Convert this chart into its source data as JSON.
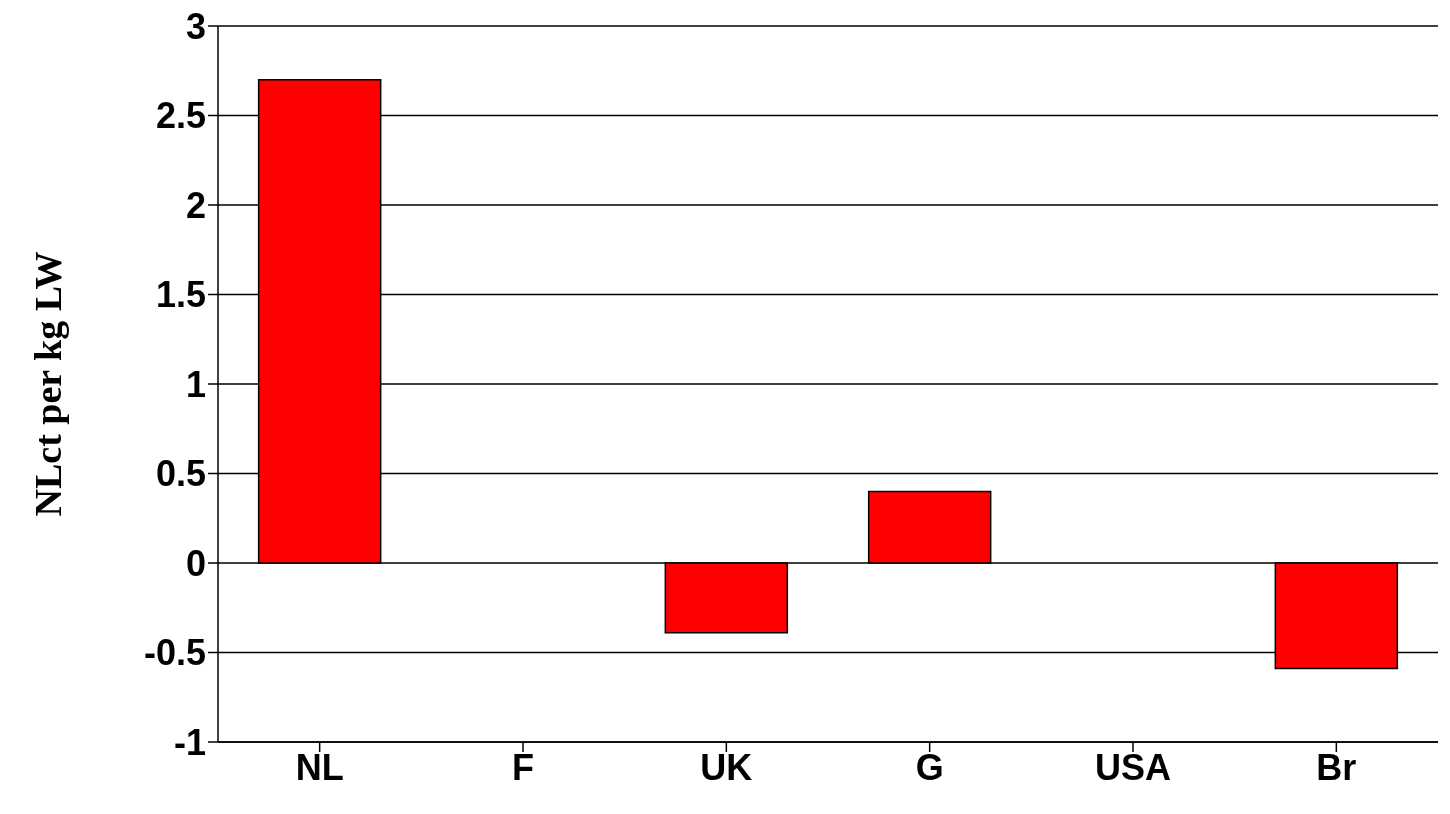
{
  "chart_data": {
    "type": "bar",
    "ylabel": "NLct per kg LW",
    "categories": [
      "NL",
      "F",
      "UK",
      "G",
      "USA",
      "Br"
    ],
    "series": [
      {
        "color": "#ff0000",
        "values": [
          2.7,
          0,
          -0.39,
          0.4,
          0,
          -0.59
        ]
      }
    ],
    "ylim": [
      -1,
      3
    ],
    "yticks": [
      -1,
      -0.5,
      0,
      0.5,
      1,
      1.5,
      2,
      2.5,
      3
    ],
    "grid": "y",
    "legend": false
  }
}
